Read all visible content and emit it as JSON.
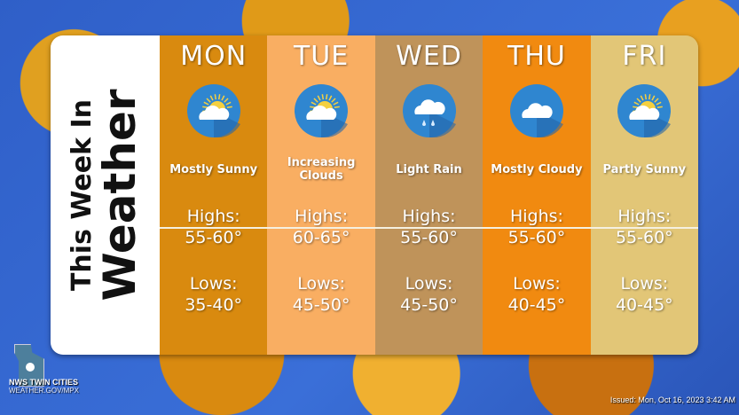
{
  "title": {
    "line1": "This Week In",
    "line2": "Weather"
  },
  "days": [
    {
      "day": "MON",
      "condition": "Mostly Sunny",
      "icon": "sun-cloud-icon",
      "highs_label": "Highs:",
      "highs": "55-60°",
      "lows_label": "Lows:",
      "lows": "35-40°",
      "color": "#D98A0F"
    },
    {
      "day": "TUE",
      "condition": "Increasing Clouds",
      "icon": "sun-cloud-icon",
      "highs_label": "Highs:",
      "highs": "60-65°",
      "lows_label": "Lows:",
      "lows": "45-50°",
      "color": "#F9AE62"
    },
    {
      "day": "WED",
      "condition": "Light Rain",
      "icon": "rain-cloud-icon",
      "highs_label": "Highs:",
      "highs": "55-60°",
      "lows_label": "Lows:",
      "lows": "45-50°",
      "color": "#BF935A"
    },
    {
      "day": "THU",
      "condition": "Mostly Cloudy",
      "icon": "cloud-icon",
      "highs_label": "Highs:",
      "highs": "55-60°",
      "lows_label": "Lows:",
      "lows": "40-45°",
      "color": "#F18A10"
    },
    {
      "day": "FRI",
      "condition": "Partly Sunny",
      "icon": "sun-cloud-icon",
      "highs_label": "Highs:",
      "highs": "55-60°",
      "lows_label": "Lows:",
      "lows": "40-45°",
      "color": "#E2C677"
    }
  ],
  "footer": {
    "org": "NWS TWIN CITIES",
    "site": "WEATHER.GOV/MPX",
    "issued": "Issued: Mon, Oct 16, 2023 3:42 AM"
  }
}
